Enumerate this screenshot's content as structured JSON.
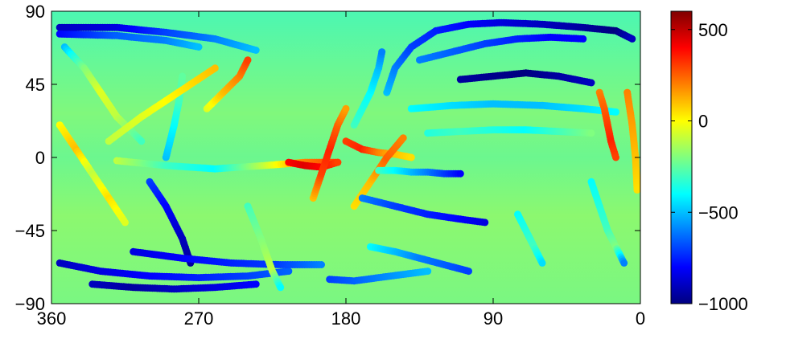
{
  "chart_data": {
    "type": "scatter",
    "title": "",
    "xlabel": "",
    "ylabel": "",
    "x_axis": {
      "reversed": true,
      "range": [
        0,
        360
      ],
      "ticks": [
        360,
        270,
        180,
        90,
        0
      ],
      "tick_labels": [
        "360",
        "270",
        "180",
        "90",
        "0"
      ]
    },
    "y_axis": {
      "range": [
        -90,
        90
      ],
      "ticks": [
        90,
        45,
        0,
        -45,
        -90
      ],
      "tick_labels": [
        "90",
        "45",
        "0",
        "−45",
        "−90"
      ]
    },
    "colorbar": {
      "range": [
        -1000,
        600
      ],
      "ticks": [
        500,
        0,
        -500,
        -1000
      ],
      "tick_labels": [
        "500",
        "0",
        "−500",
        "−1000"
      ],
      "colormap": "jet",
      "placement": "right"
    },
    "background_field": "smooth field, approximately −300 near the equator and poles, −200 at mid-latitudes",
    "grid": false,
    "legend": "none",
    "point_tracks": [
      {
        "x": [
          355,
          320,
          290,
          260,
          235
        ],
        "y": [
          80,
          80,
          77,
          73,
          66
        ],
        "v": [
          -900,
          -850,
          -700,
          -600,
          -500
        ]
      },
      {
        "x": [
          355,
          320,
          290,
          270
        ],
        "y": [
          76,
          75,
          72,
          68
        ],
        "v": [
          -800,
          -650,
          -600,
          -500
        ]
      },
      {
        "x": [
          352,
          340,
          330,
          320,
          305
        ],
        "y": [
          68,
          55,
          40,
          25,
          10
        ],
        "v": [
          -500,
          -200,
          -50,
          -100,
          -300
        ]
      },
      {
        "x": [
          355,
          345,
          335,
          325,
          315
        ],
        "y": [
          20,
          5,
          -10,
          -25,
          -40
        ],
        "v": [
          0,
          100,
          -100,
          50,
          -50
        ]
      },
      {
        "x": [
          300,
          290,
          280,
          275
        ],
        "y": [
          -15,
          -30,
          -50,
          -65
        ],
        "v": [
          -700,
          -800,
          -900,
          -950
        ]
      },
      {
        "x": [
          290,
          285,
          282,
          280
        ],
        "y": [
          0,
          20,
          35,
          50
        ],
        "v": [
          -500,
          -400,
          -300,
          -250
        ]
      },
      {
        "x": [
          325,
          305,
          290,
          275,
          260
        ],
        "y": [
          10,
          25,
          35,
          45,
          55
        ],
        "v": [
          -100,
          -50,
          0,
          50,
          100
        ]
      },
      {
        "x": [
          265,
          255,
          245,
          240
        ],
        "y": [
          30,
          40,
          50,
          60
        ],
        "v": [
          -50,
          100,
          200,
          300
        ]
      },
      {
        "x": [
          355,
          330,
          300,
          270,
          240,
          215
        ],
        "y": [
          -65,
          -70,
          -73,
          -74,
          -73,
          -70
        ],
        "v": [
          -900,
          -850,
          -800,
          -750,
          -700,
          -650
        ]
      },
      {
        "x": [
          335,
          310,
          285,
          260,
          235
        ],
        "y": [
          -78,
          -80,
          -81,
          -80,
          -78
        ],
        "v": [
          -900,
          -950,
          -900,
          -850,
          -800
        ]
      },
      {
        "x": [
          310,
          280,
          250,
          220,
          195
        ],
        "y": [
          -58,
          -62,
          -65,
          -66,
          -66
        ],
        "v": [
          -850,
          -800,
          -750,
          -700,
          -600
        ]
      },
      {
        "x": [
          240,
          232,
          225,
          220
        ],
        "y": [
          -30,
          -50,
          -70,
          -80
        ],
        "v": [
          -300,
          -200,
          -100,
          -400
        ]
      },
      {
        "x": [
          320,
          290,
          260,
          230,
          205,
          185
        ],
        "y": [
          -2,
          -5,
          -7,
          -5,
          -3,
          -3
        ],
        "v": [
          -100,
          -300,
          -400,
          -100,
          200,
          300
        ]
      },
      {
        "x": [
          215,
          205,
          195,
          185
        ],
        "y": [
          -3,
          -5,
          -6,
          -3
        ],
        "v": [
          400,
          450,
          400,
          300
        ]
      },
      {
        "x": [
          200,
          195,
          190,
          185,
          180
        ],
        "y": [
          -25,
          -10,
          5,
          20,
          30
        ],
        "v": [
          100,
          300,
          350,
          250,
          150
        ]
      },
      {
        "x": [
          180,
          170,
          160,
          150,
          140
        ],
        "y": [
          10,
          5,
          3,
          2,
          0
        ],
        "v": [
          300,
          350,
          200,
          100,
          50
        ]
      },
      {
        "x": [
          175,
          165,
          155,
          145
        ],
        "y": [
          -30,
          -15,
          0,
          12
        ],
        "v": [
          50,
          100,
          250,
          200
        ]
      },
      {
        "x": [
          160,
          150,
          140,
          130,
          120,
          110
        ],
        "y": [
          -8,
          -8,
          -9,
          -9,
          -10,
          -10
        ],
        "v": [
          -300,
          -400,
          -500,
          -600,
          -700,
          -800
        ]
      },
      {
        "x": [
          170,
          150,
          130,
          110,
          95
        ],
        "y": [
          -25,
          -30,
          -35,
          -38,
          -40
        ],
        "v": [
          -600,
          -700,
          -750,
          -800,
          -850
        ]
      },
      {
        "x": [
          165,
          150,
          135,
          120,
          105
        ],
        "y": [
          -55,
          -58,
          -62,
          -66,
          -70
        ],
        "v": [
          -400,
          -500,
          -600,
          -650,
          -700
        ]
      },
      {
        "x": [
          175,
          165,
          160,
          158
        ],
        "y": [
          20,
          40,
          55,
          65
        ],
        "v": [
          -300,
          -400,
          -500,
          -600
        ]
      },
      {
        "x": [
          155,
          150,
          140,
          125,
          105,
          85,
          60,
          35,
          15,
          5
        ],
        "y": [
          40,
          55,
          68,
          78,
          82,
          83,
          82,
          80,
          78,
          73
        ],
        "v": [
          -500,
          -600,
          -700,
          -750,
          -800,
          -850,
          -900,
          -950,
          -1000,
          -900
        ]
      },
      {
        "x": [
          135,
          115,
          95,
          75,
          55,
          35
        ],
        "y": [
          60,
          65,
          70,
          73,
          74,
          73
        ],
        "v": [
          -600,
          -650,
          -700,
          -750,
          -800,
          -800
        ]
      },
      {
        "x": [
          110,
          90,
          70,
          50,
          30
        ],
        "y": [
          48,
          50,
          52,
          50,
          46
        ],
        "v": [
          -950,
          -980,
          -1000,
          -950,
          -900
        ]
      },
      {
        "x": [
          140,
          115,
          90,
          60,
          35,
          15
        ],
        "y": [
          30,
          32,
          33,
          32,
          30,
          28
        ],
        "v": [
          -400,
          -450,
          -500,
          -500,
          -450,
          -400
        ]
      },
      {
        "x": [
          130,
          110,
          90,
          70,
          50,
          30
        ],
        "y": [
          15,
          16,
          17,
          17,
          16,
          15
        ],
        "v": [
          -350,
          -300,
          -350,
          -400,
          -300,
          -200
        ]
      },
      {
        "x": [
          25,
          22,
          20,
          18,
          15
        ],
        "y": [
          40,
          30,
          20,
          10,
          0
        ],
        "v": [
          200,
          250,
          300,
          350,
          300
        ]
      },
      {
        "x": [
          30,
          25,
          20,
          15,
          10
        ],
        "y": [
          -15,
          -30,
          -45,
          -55,
          -65
        ],
        "v": [
          -400,
          -350,
          -300,
          -200,
          -600
        ]
      },
      {
        "x": [
          8,
          5,
          3,
          2
        ],
        "y": [
          40,
          20,
          0,
          -20
        ],
        "v": [
          200,
          150,
          100,
          50
        ]
      },
      {
        "x": [
          75,
          70,
          65,
          60
        ],
        "y": [
          -35,
          -45,
          -55,
          -65
        ],
        "v": [
          -400,
          -350,
          -300,
          -450
        ]
      },
      {
        "x": [
          190,
          175,
          160,
          145,
          130
        ],
        "y": [
          -75,
          -76,
          -74,
          -72,
          -70
        ],
        "v": [
          -700,
          -650,
          -600,
          -550,
          -500
        ]
      }
    ]
  }
}
